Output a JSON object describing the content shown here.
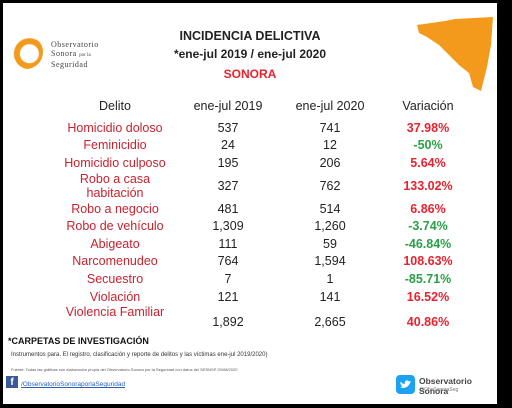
{
  "logo": {
    "line1": "Observatorio",
    "line2": "Sonora",
    "line2_small": "por la",
    "line3": "Seguridad"
  },
  "header": {
    "title": "INCIDENCIA DELICTIVA",
    "period": "*ene-jul 2019 / ene-jul 2020",
    "state": "SONORA"
  },
  "table": {
    "columns": [
      "Delito",
      "ene-jul 2019",
      "ene-jul 2020",
      "Variación"
    ],
    "rows": [
      {
        "crime": "Homicidio doloso",
        "y2019": "537",
        "y2020": "741",
        "change": "37.98%"
      },
      {
        "crime": "Feminicidio",
        "y2019": "24",
        "y2020": "12",
        "change": "-50%"
      },
      {
        "crime": "Homicidio culposo",
        "y2019": "195",
        "y2020": "206",
        "change": "5.64%"
      },
      {
        "crime": "Robo a casa habitación",
        "y2019": "327",
        "y2020": "762",
        "change": "133.02%"
      },
      {
        "crime": "Robo a negocio",
        "y2019": "481",
        "y2020": "514",
        "change": "6.86%"
      },
      {
        "crime": "Robo de vehículo",
        "y2019": "1,309",
        "y2020": "1,260",
        "change": "-3.74%"
      },
      {
        "crime": "Abigeato",
        "y2019": "111",
        "y2020": "59",
        "change": "-46.84%"
      },
      {
        "crime": "Narcomenudeo",
        "y2019": "764",
        "y2020": "1,594",
        "change": "108.63%"
      },
      {
        "crime": "Secuestro",
        "y2019": "7",
        "y2020": "1",
        "change": "-85.71%"
      },
      {
        "crime": "Violación",
        "y2019": "121",
        "y2020": "141",
        "change": "16.52%"
      },
      {
        "crime": "Violencia Familiar",
        "y2019": "1,892",
        "y2020": "2,665",
        "change": "40.86%"
      }
    ]
  },
  "notes": {
    "title": "*CARPETAS DE INVESTIGACIÓN",
    "instruments": "Instrumentos para. El registro, clasificación y reporte de delitos y las víctimas ene-jul 2019/2020)",
    "source": "Fuente: Todas las gráficas son elaboración propia del Observatorio Sonora por la Seguridad con datos del SESNSP 20/08/2020"
  },
  "footer": {
    "facebook_link": "/ObservatorioSonoraporlaSeguridad",
    "twitter_name": "Observatorio Sonora",
    "twitter_handle": "@ObsSonoraSeg"
  },
  "colors": {
    "accent_red": "#e8232f",
    "negative_green": "#2aa047",
    "brand_orange": "#f39a1d"
  }
}
